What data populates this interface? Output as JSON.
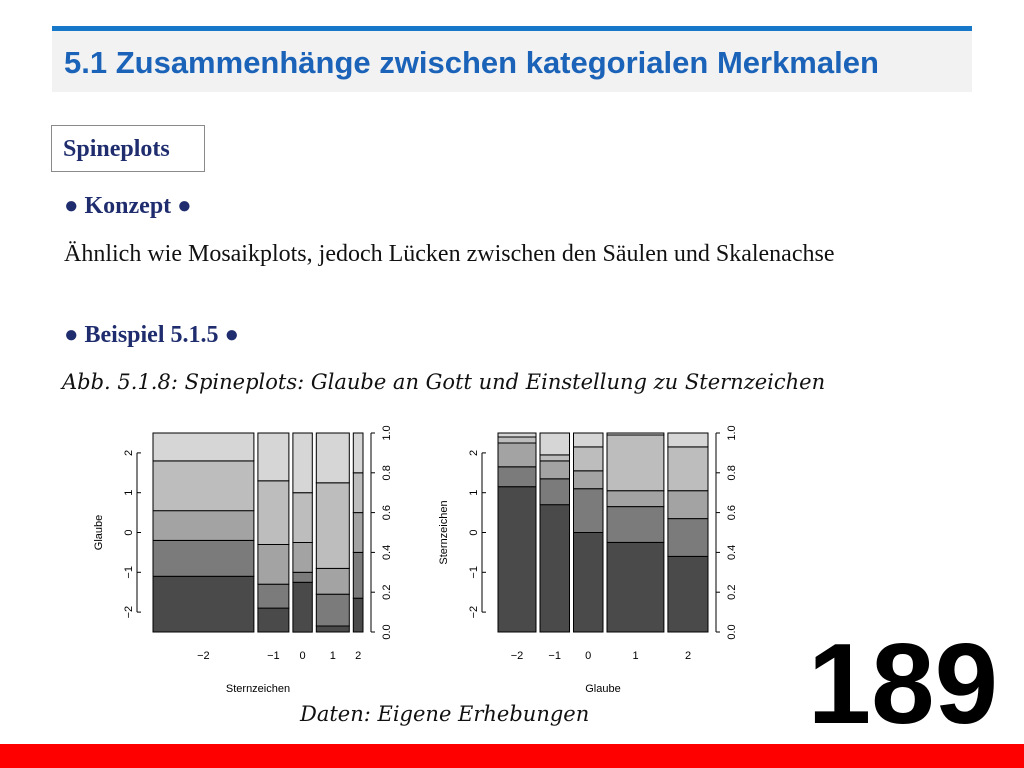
{
  "header": {
    "title": "5.1 Zusammenhänge zwischen kategorialen Merkmalen"
  },
  "section": {
    "label": "Spineplots"
  },
  "concept": {
    "heading": "● Konzept ●",
    "text": "Ähnlich wie Mosaikplots, jedoch Lücken zwischen den Säulen und Skalenachse"
  },
  "example": {
    "heading": "● Beispiel 5.1.5 ●"
  },
  "figure": {
    "caption": "Abb. 5.1.8: Spineplots: Glaube an Gott und Einstellung zu Sternzeichen",
    "source": "Daten: Eigene Erhebungen"
  },
  "colors": {
    "title_blue": "#1a63b8",
    "accent_blue": "#1778c9",
    "bottom_bar": "#ff0000",
    "text_navy": "#1f2d6e"
  },
  "chart_data": [
    {
      "type": "spineplot",
      "xlabel": "Sternzeichen",
      "ylabel": "Glaube",
      "x_categories": [
        "−2",
        "−1",
        "0",
        "1",
        "2"
      ],
      "x_widths": [
        0.52,
        0.16,
        0.1,
        0.17,
        0.05
      ],
      "y_categories": [
        "−2",
        "−1",
        "0",
        "1",
        "2"
      ],
      "left_tick_labels": [
        "−2",
        "−1",
        "0",
        "1",
        "2"
      ],
      "right_axis_ticks": [
        "0.0",
        "0.2",
        "0.4",
        "0.6",
        "0.8",
        "1.0"
      ],
      "ylim": [
        0,
        1
      ],
      "proportions": [
        [
          0.28,
          0.18,
          0.15,
          0.25,
          0.14
        ],
        [
          0.12,
          0.12,
          0.2,
          0.32,
          0.24
        ],
        [
          0.25,
          0.05,
          0.15,
          0.25,
          0.3
        ],
        [
          0.03,
          0.16,
          0.13,
          0.43,
          0.25
        ],
        [
          0.17,
          0.23,
          0.2,
          0.2,
          0.2
        ]
      ],
      "fill_colors": [
        "#4a4a4a",
        "#7b7b7b",
        "#a3a3a3",
        "#bdbdbd",
        "#d6d6d6"
      ]
    },
    {
      "type": "spineplot",
      "xlabel": "Glaube",
      "ylabel": "Sternzeichen",
      "x_categories": [
        "−2",
        "−1",
        "0",
        "1",
        "2"
      ],
      "x_widths": [
        0.18,
        0.14,
        0.14,
        0.27,
        0.19
      ],
      "y_categories": [
        "−2",
        "−1",
        "0",
        "1",
        "2"
      ],
      "left_tick_labels": [
        "−2",
        "−1",
        "0",
        "1",
        "2"
      ],
      "right_axis_ticks": [
        "0.0",
        "0.2",
        "0.4",
        "0.6",
        "0.8",
        "1.0"
      ],
      "ylim": [
        0,
        1
      ],
      "proportions": [
        [
          0.73,
          0.1,
          0.12,
          0.03,
          0.02
        ],
        [
          0.64,
          0.13,
          0.09,
          0.03,
          0.11
        ],
        [
          0.5,
          0.22,
          0.09,
          0.12,
          0.07
        ],
        [
          0.45,
          0.18,
          0.08,
          0.28,
          0.01
        ],
        [
          0.38,
          0.19,
          0.14,
          0.22,
          0.07
        ]
      ],
      "fill_colors": [
        "#4a4a4a",
        "#7b7b7b",
        "#a3a3a3",
        "#bdbdbd",
        "#d6d6d6"
      ]
    }
  ],
  "page_number": "189"
}
